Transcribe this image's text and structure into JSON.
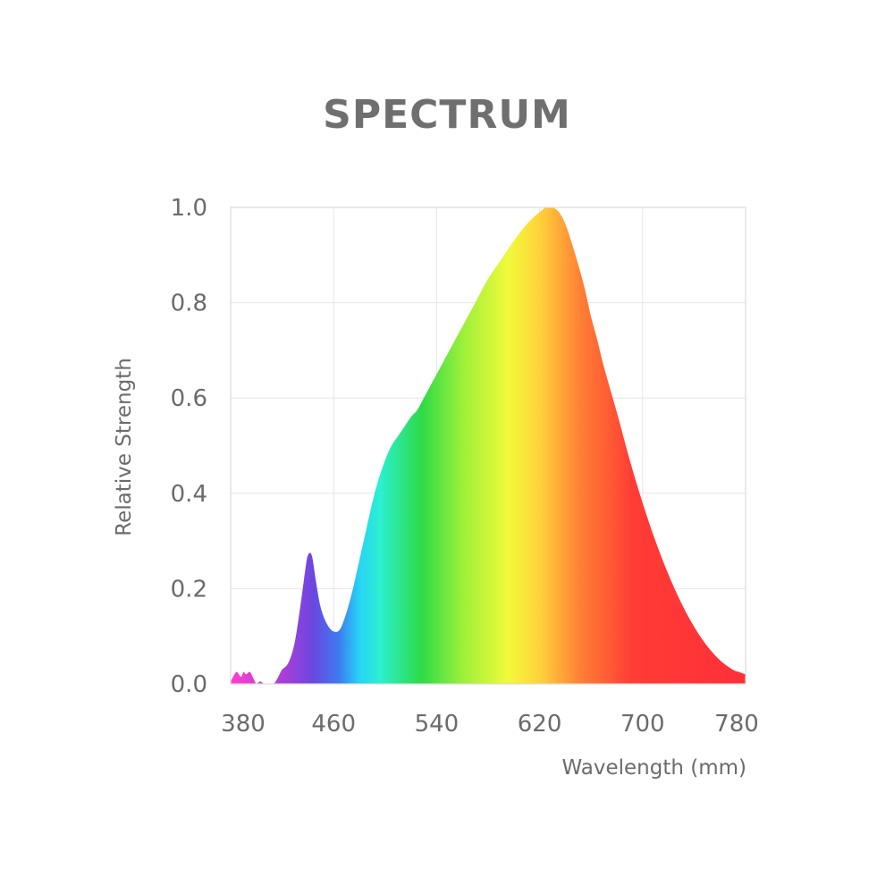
{
  "chart_data": {
    "type": "area",
    "title": "SPECTRUM",
    "xlabel": "Wavelength (mm)",
    "ylabel": "Relative Strength",
    "xlim": [
      380,
      780
    ],
    "ylim": [
      0,
      1.0
    ],
    "x_ticks": [
      "380",
      "460",
      "540",
      "620",
      "700",
      "780"
    ],
    "y_ticks": [
      "0.0",
      "0.2",
      "0.4",
      "0.6",
      "0.8",
      "1.0"
    ],
    "grid": true,
    "series": [
      {
        "x": [
          380,
          383,
          385,
          388,
          390,
          392,
          395,
          398,
          400,
          403,
          406,
          410,
          413,
          415,
          418,
          420,
          425,
          430,
          435,
          438,
          440,
          443,
          446,
          450,
          455,
          460,
          465,
          470,
          475,
          480,
          485,
          490,
          495,
          500,
          505,
          510,
          515,
          520,
          525,
          530,
          540,
          550,
          560,
          570,
          580,
          590,
          600,
          610,
          620,
          625,
          630,
          635,
          640,
          645,
          650,
          655,
          660,
          665,
          670,
          680,
          690,
          700,
          710,
          720,
          730,
          740,
          750,
          760,
          770,
          775,
          780
        ],
        "y": [
          0.005,
          0.02,
          0.025,
          0.015,
          0.025,
          0.02,
          0.025,
          0.01,
          0.0,
          0.005,
          0.0,
          0.0,
          0.0,
          0.005,
          0.02,
          0.03,
          0.045,
          0.09,
          0.18,
          0.24,
          0.27,
          0.27,
          0.22,
          0.16,
          0.125,
          0.11,
          0.115,
          0.15,
          0.2,
          0.26,
          0.32,
          0.38,
          0.43,
          0.47,
          0.5,
          0.52,
          0.54,
          0.56,
          0.575,
          0.6,
          0.65,
          0.7,
          0.75,
          0.8,
          0.85,
          0.89,
          0.93,
          0.965,
          0.99,
          1.0,
          1.0,
          0.99,
          0.965,
          0.925,
          0.88,
          0.83,
          0.77,
          0.72,
          0.665,
          0.57,
          0.47,
          0.38,
          0.3,
          0.23,
          0.17,
          0.12,
          0.08,
          0.05,
          0.03,
          0.025,
          0.02
        ]
      }
    ]
  }
}
